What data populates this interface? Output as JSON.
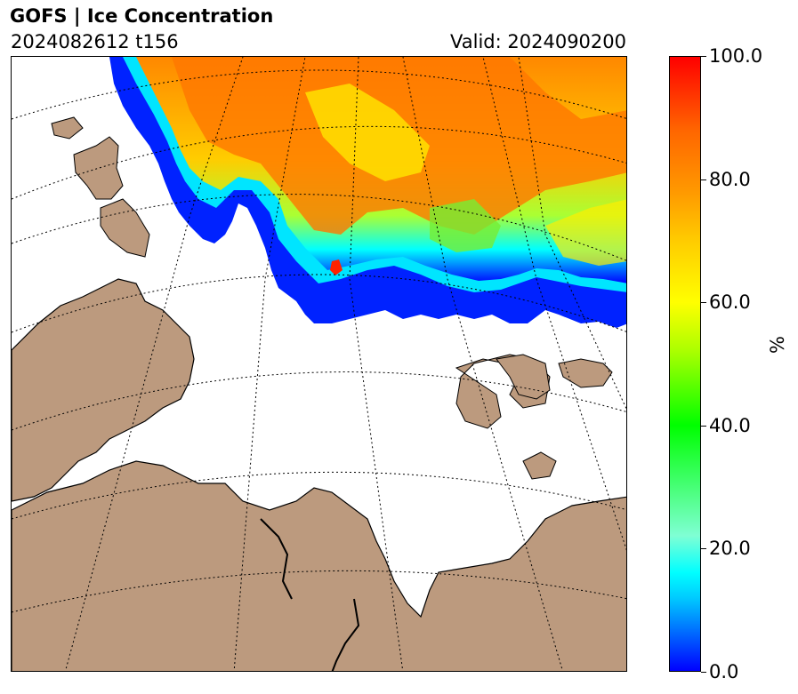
{
  "header": {
    "title": "GOFS  |  Ice Concentration",
    "run": "2024082612 t156",
    "valid": "Valid: 2024090200"
  },
  "map": {
    "land_color": "#bc9a7e",
    "ocean_color": "#ffffff",
    "gridline_style": "dotted"
  },
  "colorbar": {
    "unit": "%",
    "min": 0.0,
    "max": 100.0,
    "ticks": [
      "0.0",
      "20.0",
      "40.0",
      "60.0",
      "80.0",
      "100.0"
    ],
    "colors": [
      "#0000ff",
      "#00ffff",
      "#00ff00",
      "#ffff00",
      "#ff9900",
      "#ff0000"
    ]
  }
}
